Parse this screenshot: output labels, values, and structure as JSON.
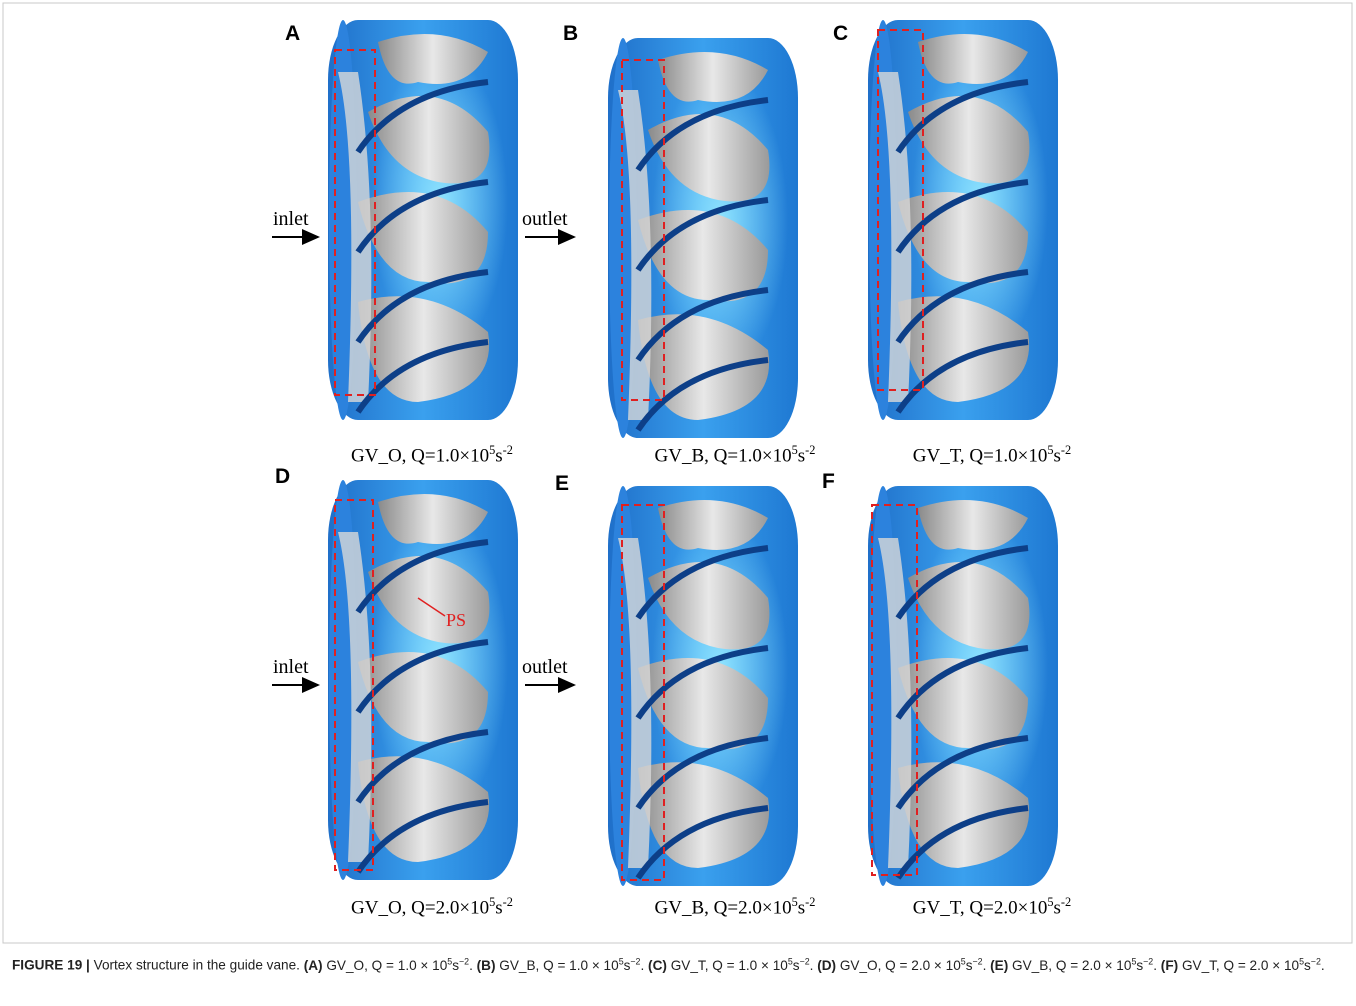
{
  "panels": [
    {
      "letter": "A",
      "caption": {
        "text": "GV_O, Q=1.0×10",
        "exp": "5",
        "unit": "s",
        "unit_exp": "-2"
      }
    },
    {
      "letter": "B",
      "caption": {
        "text": "GV_B, Q=1.0×10",
        "exp": "5",
        "unit": "s",
        "unit_exp": "-2"
      }
    },
    {
      "letter": "C",
      "caption": {
        "text": "GV_T, Q=1.0×10",
        "exp": "5",
        "unit": "s",
        "unit_exp": "-2"
      }
    },
    {
      "letter": "D",
      "caption": {
        "text": "GV_O, Q=2.0×10",
        "exp": "5",
        "unit": "s",
        "unit_exp": "-2"
      }
    },
    {
      "letter": "E",
      "caption": {
        "text": "GV_B, Q=2.0×10",
        "exp": "5",
        "unit": "s",
        "unit_exp": "-2"
      }
    },
    {
      "letter": "F",
      "caption": {
        "text": "GV_T, Q=2.0×10",
        "exp": "5",
        "unit": "s",
        "unit_exp": "-2"
      }
    }
  ],
  "flow_labels": [
    {
      "inlet": "inlet",
      "outlet": "outlet"
    },
    {
      "inlet": "inlet",
      "outlet": "outlet"
    }
  ],
  "ps_label": "PS",
  "caption": {
    "label": "FIGURE 19 |",
    "text": "Vortex structure in the guide vane.",
    "items": [
      {
        "label": "(A)",
        "text": "GV_O, Q = 1.0 × 10",
        "exp": "5",
        "unit": "s",
        "unit_exp": "−2",
        "end": "."
      },
      {
        "label": "(B)",
        "text": "GV_B, Q = 1.0 × 10",
        "exp": "5",
        "unit": "s",
        "unit_exp": "−2",
        "end": "."
      },
      {
        "label": "(C)",
        "text": "GV_T, Q = 1.0 × 10",
        "exp": "5",
        "unit": "s",
        "unit_exp": "−2",
        "end": "."
      },
      {
        "label": "(D)",
        "text": "GV_O, Q = 2.0 × 10",
        "exp": "5",
        "unit": "s",
        "unit_exp": "−2",
        "end": "."
      },
      {
        "label": "(E)",
        "text": "GV_B, Q = 2.0 × 10",
        "exp": "5",
        "unit": "s",
        "unit_exp": "−2",
        "end": "."
      },
      {
        "label": "(F)",
        "text": "GV_T, Q = 2.0 × 10",
        "exp": "5",
        "unit": "s",
        "unit_exp": "−2",
        "end": "."
      }
    ]
  }
}
